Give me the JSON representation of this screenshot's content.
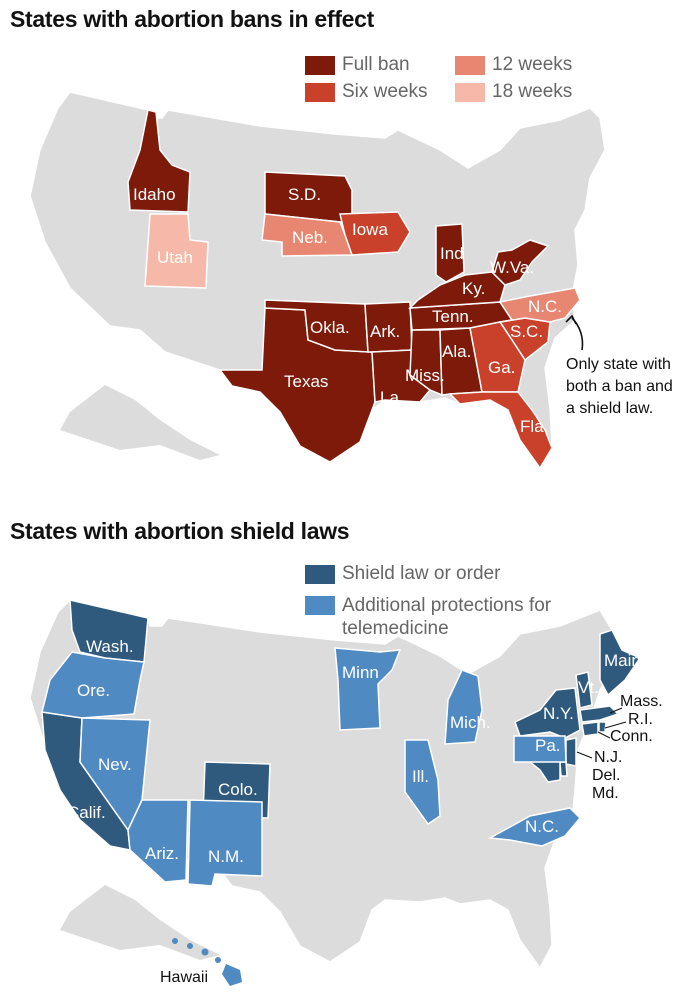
{
  "bans_section": {
    "title": "States with abortion bans in effect",
    "legend": [
      {
        "label": "Full ban",
        "color": "#7d1a0a"
      },
      {
        "label": "Six weeks",
        "color": "#c9412b"
      },
      {
        "label": "12 weeks",
        "color": "#e78772"
      },
      {
        "label": "18 weeks",
        "color": "#f6b9a9"
      }
    ],
    "state_labels": {
      "idaho": "Idaho",
      "utah": "Utah",
      "sd": "S.D.",
      "neb": "Neb.",
      "iowa": "Iowa",
      "okla": "Okla.",
      "texas": "Texas",
      "ark": "Ark.",
      "la": "La.",
      "miss": "Miss.",
      "ala": "Ala.",
      "tenn": "Tenn.",
      "ky": "Ky.",
      "ind": "Ind",
      "wva": "W.Va.",
      "nc": "N.C.",
      "sc": "S.C.",
      "ga": "Ga.",
      "fla": "Fla."
    },
    "annotation": "Only state with both a ban and a shield law."
  },
  "shield_section": {
    "title": "States with abortion shield laws",
    "legend": [
      {
        "label": "Shield law or order",
        "color": "#2f5a7e"
      },
      {
        "label": "Additional protections for telemedicine",
        "color": "#4f8ac2"
      }
    ],
    "state_labels": {
      "wash": "Wash.",
      "ore": "Ore.",
      "calif": "Calif.",
      "nev": "Nev.",
      "ariz": "Ariz.",
      "nm": "N.M.",
      "colo": "Colo.",
      "minn": "Minn",
      "ill": "Ill.",
      "mich": "Mich.",
      "ny": "N.Y.",
      "vt": "Vt.",
      "maine": "Maine",
      "pa": "Pa.",
      "nc": "N.C.",
      "mass": "Mass.",
      "ri": "R.I.",
      "conn": "Conn.",
      "nj": "N.J.",
      "del": "Del.",
      "md": "Md.",
      "hawaii": "Hawaii"
    }
  },
  "colors": {
    "land": "#dcdcdc",
    "border": "#ffffff"
  }
}
